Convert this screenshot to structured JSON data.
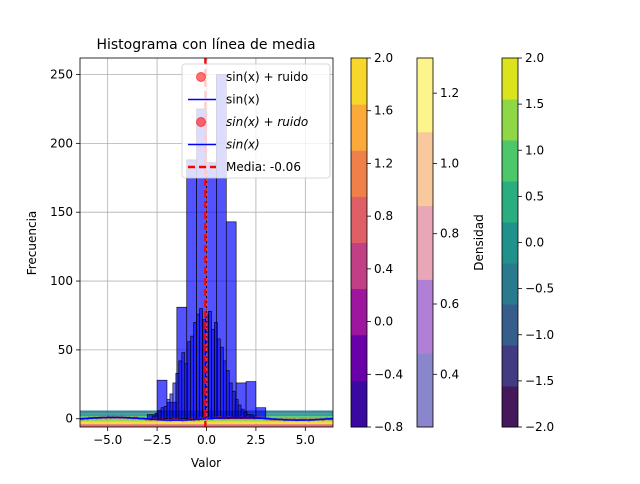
{
  "chart_data": {
    "type": "bar",
    "title": "Histograma con línea de media",
    "xlabel": "Valor",
    "ylabel": "Frecuencia",
    "xlim": [
      -6.4,
      6.4
    ],
    "ylim": [
      -6,
      262
    ],
    "grid": true,
    "x_ticks": [
      -5.0,
      -2.5,
      0.0,
      2.5,
      5.0
    ],
    "x_tick_labels": [
      "−5.0",
      "−2.5",
      "0.0",
      "2.5",
      "5.0"
    ],
    "y_ticks": [
      0,
      50,
      100,
      150,
      200,
      250
    ],
    "y_tick_labels": [
      "0",
      "50",
      "100",
      "150",
      "200",
      "250"
    ],
    "histogram_wide": {
      "color": "#0000ff",
      "bins": [
        {
          "x0": -3.0,
          "x1": -2.5,
          "count": 3
        },
        {
          "x0": -2.5,
          "x1": -2.0,
          "count": 28
        },
        {
          "x0": -2.0,
          "x1": -1.5,
          "count": 12
        },
        {
          "x0": -1.5,
          "x1": -1.0,
          "count": 81
        },
        {
          "x0": -1.0,
          "x1": -0.5,
          "count": 188
        },
        {
          "x0": -0.5,
          "x1": 0.0,
          "count": 225
        },
        {
          "x0": 0.0,
          "x1": 0.5,
          "count": 186
        },
        {
          "x0": 0.5,
          "x1": 1.0,
          "count": 250
        },
        {
          "x0": 1.0,
          "x1": 1.5,
          "count": 143
        },
        {
          "x0": 1.5,
          "x1": 2.0,
          "count": 26
        },
        {
          "x0": 2.0,
          "x1": 2.5,
          "count": 27
        },
        {
          "x0": 2.5,
          "x1": 3.0,
          "count": 8
        }
      ]
    },
    "histogram_narrow": {
      "color": "#0000ff",
      "x_start": -2.75,
      "bin_width": 0.15,
      "counts": [
        2,
        4,
        6,
        8,
        9,
        14,
        18,
        26,
        33,
        42,
        48,
        40,
        56,
        60,
        70,
        76,
        80,
        72,
        76,
        78,
        65,
        70,
        58,
        52,
        42,
        35,
        26,
        20,
        14,
        10,
        7,
        5,
        3,
        3,
        2,
        1
      ]
    },
    "series": [
      {
        "name": "sin(x) + ruido",
        "marker": "o",
        "color": "#ff0000"
      },
      {
        "name": "sin(x)",
        "line": "solid",
        "color": "#0000ff"
      },
      {
        "name": "$sin(x) + ruido$",
        "marker": "o",
        "color": "#ff0000"
      },
      {
        "name": "$sin(x)$",
        "line": "solid",
        "color": "#0000ff"
      },
      {
        "name": "Media: -0.06",
        "line": "dashed",
        "color": "#ff0000",
        "x": -0.06
      }
    ],
    "legend_position": "top-right",
    "colorbars": [
      {
        "label": "",
        "range": [
          -0.8,
          2.0
        ],
        "tick_labels": [
          "−0.8",
          "−0.4",
          "0.0",
          "0.4",
          "0.8",
          "1.2",
          "1.6",
          "2.0"
        ],
        "colors": [
          "#3a0aa0",
          "#6a00a8",
          "#9c179e",
          "#c13f84",
          "#de5f65",
          "#f0804a",
          "#faa93a",
          "#f6d72a"
        ]
      },
      {
        "label": "Densidad",
        "range": [
          0.25,
          1.3
        ],
        "tick_labels": [
          "0.4",
          "0.6",
          "0.8",
          "1.0",
          "1.2"
        ],
        "colors": [
          "#8a86cc",
          "#b07fd6",
          "#e8a6b6",
          "#f7c99c",
          "#fdf48c"
        ]
      },
      {
        "label": "",
        "range": [
          -2.0,
          2.0
        ],
        "tick_labels": [
          "−2.0",
          "−1.5",
          "−1.0",
          "−0.5",
          "0.0",
          "0.5",
          "1.0",
          "1.5",
          "2.0"
        ],
        "colors": [
          "#44185a",
          "#433a84",
          "#375d8c",
          "#2a7a8e",
          "#21928b",
          "#2aae7f",
          "#4ec66a",
          "#8fd744",
          "#dbe31c"
        ]
      }
    ]
  }
}
